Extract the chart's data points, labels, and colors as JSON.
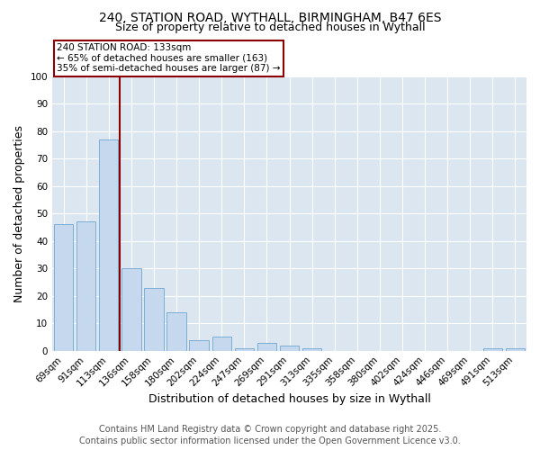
{
  "title1": "240, STATION ROAD, WYTHALL, BIRMINGHAM, B47 6ES",
  "title2": "Size of property relative to detached houses in Wythall",
  "xlabel": "Distribution of detached houses by size in Wythall",
  "ylabel": "Number of detached properties",
  "categories": [
    "69sqm",
    "91sqm",
    "113sqm",
    "136sqm",
    "158sqm",
    "180sqm",
    "202sqm",
    "224sqm",
    "247sqm",
    "269sqm",
    "291sqm",
    "313sqm",
    "335sqm",
    "358sqm",
    "380sqm",
    "402sqm",
    "424sqm",
    "446sqm",
    "469sqm",
    "491sqm",
    "513sqm"
  ],
  "values": [
    46,
    47,
    77,
    30,
    23,
    14,
    4,
    5,
    1,
    3,
    2,
    1,
    0,
    0,
    0,
    0,
    0,
    0,
    0,
    1,
    1
  ],
  "bar_color": "#c5d8ee",
  "bar_edge_color": "#7bafd4",
  "vline_color": "#8b0000",
  "annotation_text": "240 STATION ROAD: 133sqm\n← 65% of detached houses are smaller (163)\n35% of semi-detached houses are larger (87) →",
  "ylim": [
    0,
    100
  ],
  "yticks": [
    0,
    10,
    20,
    30,
    40,
    50,
    60,
    70,
    80,
    90,
    100
  ],
  "background_color": "#dce6f0",
  "footer1": "Contains HM Land Registry data © Crown copyright and database right 2025.",
  "footer2": "Contains public sector information licensed under the Open Government Licence v3.0.",
  "title_fontsize": 10,
  "subtitle_fontsize": 9,
  "axis_label_fontsize": 9,
  "tick_fontsize": 7.5,
  "annotation_fontsize": 7.5,
  "footer_fontsize": 7
}
